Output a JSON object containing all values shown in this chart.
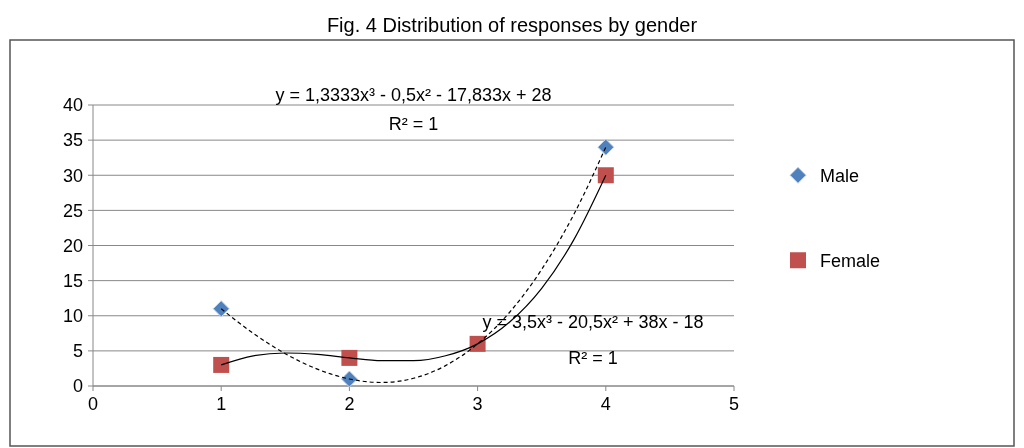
{
  "chart_data": {
    "type": "scatter",
    "title": "Fig. 4 Distribution of responses by gender",
    "xlim": [
      0,
      5
    ],
    "xticks": [
      0,
      1,
      2,
      3,
      4,
      5
    ],
    "ylim": [
      0,
      40
    ],
    "yticks": [
      0,
      5,
      10,
      15,
      20,
      25,
      30,
      35,
      40
    ],
    "grid": "y",
    "legend": "right",
    "series": [
      {
        "name": "Male",
        "color": "#4f81bd",
        "marker": "diamond",
        "x": [
          1,
          2,
          4
        ],
        "values": [
          11,
          1,
          34
        ]
      },
      {
        "name": "Female",
        "color": "#c0504d",
        "marker": "square",
        "x": [
          1,
          2,
          3,
          4
        ],
        "values": [
          3,
          4,
          6,
          30
        ]
      },
      {
        "type": "line",
        "color": "#000000",
        "marker": "none",
        "line_style": "dashed",
        "x": [
          1,
          1.25,
          1.5,
          1.75,
          2,
          2.25,
          2.5,
          2.75,
          3,
          3.25,
          3.5,
          3.75,
          4
        ],
        "values": [
          11,
          7.5,
          4.6,
          2.4,
          1,
          0.5,
          1.1,
          2.9,
          6,
          10.5,
          16.6,
          24.4,
          34
        ]
      },
      {
        "type": "line",
        "color": "#000000",
        "marker": "none",
        "line_style": "solid",
        "x": [
          1,
          1.25,
          1.5,
          1.75,
          2,
          2.25,
          2.5,
          2.75,
          3,
          3.25,
          3.5,
          3.75,
          4
        ],
        "values": [
          3,
          4.3,
          4.7,
          4.5,
          4,
          3.6,
          3.6,
          4.3,
          6,
          9.1,
          13.9,
          20.8,
          30
        ]
      }
    ],
    "annotations": [
      "y = 1,3333x³ - 0,5x² - 17,833x + 28",
      "R² = 1",
      "y = 3,5x³ - 20,5x² + 38x - 18",
      "R² = 1"
    ]
  }
}
